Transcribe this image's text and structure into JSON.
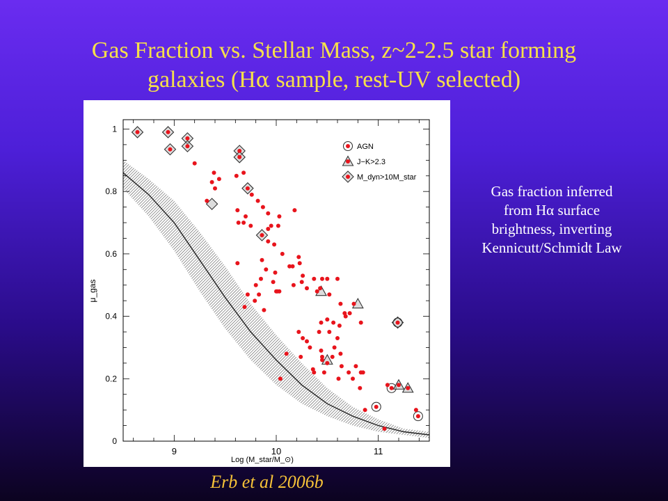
{
  "slide": {
    "title_line1": "Gas Fraction vs. Stellar Mass, z~2-2.5 star forming",
    "title_line2_pre": "galaxies (H",
    "title_alpha": "α",
    "title_line2_post": " sample, rest-UV selected)",
    "note_lines": [
      {
        "pre": "Gas fraction inferred",
        "alpha": "",
        "post": ""
      },
      {
        "pre": "from H",
        "alpha": "α",
        "post": " surface"
      },
      {
        "pre": "brightness, inverting",
        "alpha": "",
        "post": ""
      },
      {
        "pre": "Kennicutt/Schmidt Law",
        "alpha": "",
        "post": ""
      }
    ],
    "credit": "Erb et al 2006b"
  },
  "chart_data": {
    "type": "scatter",
    "xlabel": "Log (M_star/M_⊙)",
    "ylabel": "μ_gas",
    "xlim": [
      8.5,
      11.5
    ],
    "ylim": [
      0,
      1.03
    ],
    "xticks": [
      9,
      10,
      11
    ],
    "yticks": [
      0,
      0.2,
      0.4,
      0.6,
      0.8,
      1
    ],
    "ytick_labels": [
      "0",
      "0.2",
      "0.4",
      "0.6",
      "0.8",
      "1"
    ],
    "legend": {
      "placement": "top-right",
      "entries": [
        {
          "marker": "circle",
          "label": "AGN"
        },
        {
          "marker": "triangle",
          "label": "J−K>2.3"
        },
        {
          "marker": "diamond",
          "label": "M_dyn>10M_star"
        }
      ]
    },
    "colors": {
      "point": "#e8141c",
      "marker_outline": "#333333",
      "curve": "#222222",
      "band": "#555555",
      "title": "#f6e04a",
      "credit": "#f6c238"
    },
    "model_curve": {
      "x": [
        8.5,
        8.75,
        9.0,
        9.25,
        9.5,
        9.75,
        10.0,
        10.25,
        10.5,
        10.75,
        11.0,
        11.25,
        11.5
      ],
      "y": [
        0.86,
        0.79,
        0.7,
        0.58,
        0.46,
        0.35,
        0.26,
        0.18,
        0.12,
        0.08,
        0.05,
        0.03,
        0.02
      ],
      "band_upper": [
        0.9,
        0.84,
        0.77,
        0.67,
        0.56,
        0.44,
        0.34,
        0.25,
        0.17,
        0.11,
        0.07,
        0.04,
        0.03
      ],
      "band_lower": [
        0.81,
        0.72,
        0.61,
        0.48,
        0.36,
        0.26,
        0.18,
        0.12,
        0.08,
        0.05,
        0.03,
        0.02,
        0.01
      ]
    },
    "series": [
      {
        "name": "galaxies",
        "points": [
          [
            8.64,
            0.99
          ],
          [
            8.94,
            0.99
          ],
          [
            9.13,
            0.97
          ],
          [
            9.13,
            0.945
          ],
          [
            8.96,
            0.935
          ],
          [
            9.2,
            0.89
          ],
          [
            9.37,
            0.83
          ],
          [
            9.39,
            0.86
          ],
          [
            9.44,
            0.84
          ],
          [
            9.61,
            0.85
          ],
          [
            9.68,
            0.86
          ],
          [
            9.64,
            0.93
          ],
          [
            9.64,
            0.91
          ],
          [
            9.4,
            0.81
          ],
          [
            9.72,
            0.81
          ],
          [
            9.76,
            0.79
          ],
          [
            9.82,
            0.77
          ],
          [
            9.87,
            0.75
          ],
          [
            9.92,
            0.73
          ],
          [
            9.32,
            0.77
          ],
          [
            9.62,
            0.74
          ],
          [
            9.7,
            0.72
          ],
          [
            9.95,
            0.69
          ],
          [
            10.03,
            0.72
          ],
          [
            10.18,
            0.74
          ],
          [
            9.63,
            0.7
          ],
          [
            9.68,
            0.7
          ],
          [
            9.75,
            0.69
          ],
          [
            9.92,
            0.68
          ],
          [
            10.02,
            0.69
          ],
          [
            9.86,
            0.66
          ],
          [
            9.92,
            0.64
          ],
          [
            9.98,
            0.63
          ],
          [
            10.06,
            0.6
          ],
          [
            10.16,
            0.56
          ],
          [
            10.22,
            0.59
          ],
          [
            10.23,
            0.57
          ],
          [
            10.26,
            0.53
          ],
          [
            9.62,
            0.57
          ],
          [
            9.86,
            0.58
          ],
          [
            9.9,
            0.55
          ],
          [
            9.99,
            0.54
          ],
          [
            10.13,
            0.56
          ],
          [
            9.72,
            0.47
          ],
          [
            9.8,
            0.5
          ],
          [
            9.85,
            0.52
          ],
          [
            9.97,
            0.51
          ],
          [
            10.03,
            0.48
          ],
          [
            10.17,
            0.5
          ],
          [
            10.25,
            0.51
          ],
          [
            10.3,
            0.49
          ],
          [
            10.37,
            0.52
          ],
          [
            10.45,
            0.52
          ],
          [
            10.5,
            0.52
          ],
          [
            10.6,
            0.52
          ],
          [
            9.69,
            0.43
          ],
          [
            9.79,
            0.45
          ],
          [
            9.83,
            0.47
          ],
          [
            10.01,
            0.48
          ],
          [
            10.43,
            0.49
          ],
          [
            10.52,
            0.47
          ],
          [
            9.88,
            0.42
          ],
          [
            10.0,
            0.48
          ],
          [
            10.4,
            0.48
          ],
          [
            10.63,
            0.44
          ],
          [
            10.68,
            0.4
          ],
          [
            10.72,
            0.41
          ],
          [
            10.44,
            0.38
          ],
          [
            10.5,
            0.39
          ],
          [
            10.56,
            0.38
          ],
          [
            10.62,
            0.37
          ],
          [
            10.67,
            0.41
          ],
          [
            10.76,
            0.44
          ],
          [
            10.83,
            0.38
          ],
          [
            10.22,
            0.35
          ],
          [
            10.26,
            0.33
          ],
          [
            10.3,
            0.32
          ],
          [
            10.33,
            0.3
          ],
          [
            10.42,
            0.35
          ],
          [
            10.52,
            0.35
          ],
          [
            10.6,
            0.33
          ],
          [
            10.57,
            0.3
          ],
          [
            10.44,
            0.29
          ],
          [
            10.45,
            0.27
          ],
          [
            10.5,
            0.25
          ],
          [
            10.55,
            0.27
          ],
          [
            10.63,
            0.28
          ],
          [
            10.1,
            0.28
          ],
          [
            10.24,
            0.27
          ],
          [
            10.36,
            0.23
          ],
          [
            10.37,
            0.22
          ],
          [
            10.47,
            0.22
          ],
          [
            10.61,
            0.2
          ],
          [
            10.64,
            0.24
          ],
          [
            10.71,
            0.22
          ],
          [
            10.75,
            0.2
          ],
          [
            10.83,
            0.22
          ],
          [
            10.85,
            0.22
          ],
          [
            10.78,
            0.24
          ],
          [
            10.82,
            0.17
          ],
          [
            10.87,
            0.1
          ],
          [
            10.04,
            0.2
          ],
          [
            10.45,
            0.26
          ],
          [
            11.09,
            0.18
          ],
          [
            11.13,
            0.17
          ],
          [
            11.2,
            0.18
          ],
          [
            11.29,
            0.17
          ],
          [
            10.98,
            0.11
          ],
          [
            11.06,
            0.04
          ],
          [
            11.37,
            0.1
          ],
          [
            11.39,
            0.08
          ],
          [
            11.19,
            0.38
          ]
        ]
      }
    ],
    "highlighted": [
      {
        "x": 8.64,
        "y": 0.99,
        "marker": "diamond"
      },
      {
        "x": 8.94,
        "y": 0.99,
        "marker": "diamond"
      },
      {
        "x": 8.96,
        "y": 0.935,
        "marker": "diamond"
      },
      {
        "x": 9.13,
        "y": 0.97,
        "marker": "diamond"
      },
      {
        "x": 9.13,
        "y": 0.945,
        "marker": "diamond"
      },
      {
        "x": 9.64,
        "y": 0.93,
        "marker": "diamond"
      },
      {
        "x": 9.64,
        "y": 0.91,
        "marker": "diamond"
      },
      {
        "x": 9.72,
        "y": 0.81,
        "marker": "diamond"
      },
      {
        "x": 9.37,
        "y": 0.76,
        "marker": "diamond"
      },
      {
        "x": 9.86,
        "y": 0.66,
        "marker": "diamond"
      },
      {
        "x": 11.19,
        "y": 0.38,
        "marker": "diamond"
      },
      {
        "x": 11.19,
        "y": 0.38,
        "marker": "circle"
      },
      {
        "x": 10.98,
        "y": 0.11,
        "marker": "circle"
      },
      {
        "x": 11.13,
        "y": 0.17,
        "marker": "circle"
      },
      {
        "x": 11.39,
        "y": 0.08,
        "marker": "circle"
      },
      {
        "x": 10.44,
        "y": 0.48,
        "marker": "triangle"
      },
      {
        "x": 10.5,
        "y": 0.26,
        "marker": "triangle"
      },
      {
        "x": 10.8,
        "y": 0.44,
        "marker": "triangle"
      },
      {
        "x": 11.2,
        "y": 0.18,
        "marker": "triangle"
      },
      {
        "x": 11.29,
        "y": 0.17,
        "marker": "triangle"
      }
    ]
  }
}
